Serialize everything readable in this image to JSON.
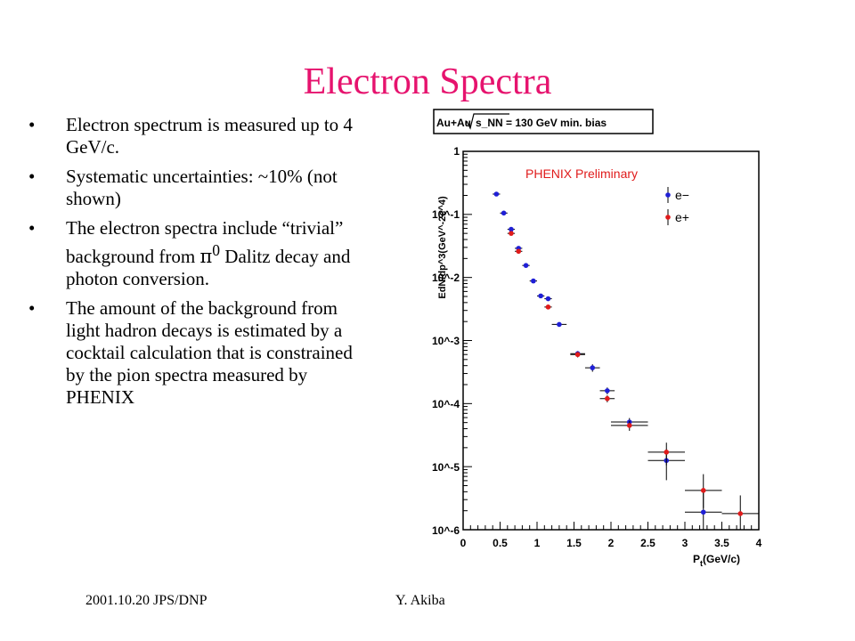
{
  "slide": {
    "title": "Electron Spectra",
    "bullets": [
      {
        "pre": "Electron spectrum is measured up to 4 GeV/c."
      },
      {
        "pre": "Systematic uncertainties: ~10% (not shown)"
      },
      {
        "pre": "The electron spectra include “trivial” background from ",
        "symbol": "π",
        "sup": "0",
        "post": " Dalitz decay and photon conversion."
      },
      {
        "pre": "The amount of the background from light hadron decays is estimated by a cocktail calculation that is constrained by the pion spectra measured by PHENIX"
      }
    ],
    "footer_left": "2001.10.20 JPS/DNP",
    "footer_right": "Y. Akiba"
  },
  "chart_data": {
    "type": "scatter",
    "header_pre": "Au+Au ",
    "header_post": "s_NN  =  130 GeV min. bias",
    "annotation": "PHENIX Preliminary",
    "xlabel_main": "P",
    "xlabel_sub": "t",
    "xlabel_rest": "(GeV/c)",
    "ylabel": "EdN/dp^3(GeV^-2c^4)",
    "y_scale": "log",
    "xlim": [
      0,
      4
    ],
    "ylim": [
      1e-06,
      1
    ],
    "xticks": [
      "0",
      "0.5",
      "1",
      "1.5",
      "2",
      "2.5",
      "3",
      "3.5",
      "4"
    ],
    "yticks": [
      "1",
      "10^-1",
      "10^-2",
      "10^-3",
      "10^-4",
      "10^-5",
      "10^-6"
    ],
    "legend_position": "top-right",
    "series": [
      {
        "name": "e−",
        "color": "#1f1fd6",
        "points": [
          {
            "x": 0.45,
            "y": 0.21,
            "xerr": 0.05,
            "ylo": 0.205,
            "yhi": 0.215
          },
          {
            "x": 0.55,
            "y": 0.105,
            "xerr": 0.05,
            "ylo": 0.102,
            "yhi": 0.108
          },
          {
            "x": 0.65,
            "y": 0.058,
            "xerr": 0.05,
            "ylo": 0.055,
            "yhi": 0.061
          },
          {
            "x": 0.75,
            "y": 0.029,
            "xerr": 0.05,
            "ylo": 0.027,
            "yhi": 0.031
          },
          {
            "x": 0.85,
            "y": 0.0155,
            "xerr": 0.05,
            "ylo": 0.0145,
            "yhi": 0.0165
          },
          {
            "x": 0.95,
            "y": 0.0088,
            "xerr": 0.05,
            "ylo": 0.0083,
            "yhi": 0.0093
          },
          {
            "x": 1.05,
            "y": 0.0051,
            "xerr": 0.05,
            "ylo": 0.0048,
            "yhi": 0.0054
          },
          {
            "x": 1.15,
            "y": 0.0046,
            "xerr": 0.05,
            "ylo": 0.0043,
            "yhi": 0.0049
          },
          {
            "x": 1.3,
            "y": 0.0018,
            "xerr": 0.1,
            "ylo": 0.0017,
            "yhi": 0.0019
          },
          {
            "x": 1.55,
            "y": 0.00062,
            "xerr": 0.1,
            "ylo": 0.00056,
            "yhi": 0.00068
          },
          {
            "x": 1.75,
            "y": 0.00037,
            "xerr": 0.1,
            "ylo": 0.00032,
            "yhi": 0.00042
          },
          {
            "x": 1.95,
            "y": 0.00016,
            "xerr": 0.1,
            "ylo": 0.00014,
            "yhi": 0.00018
          },
          {
            "x": 2.25,
            "y": 5.1e-05,
            "xerr": 0.25,
            "ylo": 4.3e-05,
            "yhi": 5.9e-05
          },
          {
            "x": 2.75,
            "y": 1.25e-05,
            "xerr": 0.25,
            "ylo": 6.1e-06,
            "yhi": 1.89e-05
          },
          {
            "x": 3.25,
            "y": 1.9e-06,
            "xerr": 0.25,
            "ylo": 1e-06,
            "yhi": 4.5e-06
          }
        ]
      },
      {
        "name": "e+",
        "color": "#e01b1b",
        "points": [
          {
            "x": 0.65,
            "y": 0.05,
            "xerr": 0.05,
            "ylo": 0.047,
            "yhi": 0.053
          },
          {
            "x": 0.75,
            "y": 0.026,
            "xerr": 0.05,
            "ylo": 0.024,
            "yhi": 0.028
          },
          {
            "x": 1.15,
            "y": 0.0034,
            "xerr": 0.05,
            "ylo": 0.0032,
            "yhi": 0.0036
          },
          {
            "x": 1.55,
            "y": 0.0006,
            "xerr": 0.1,
            "ylo": 0.00054,
            "yhi": 0.00066
          },
          {
            "x": 1.95,
            "y": 0.00012,
            "xerr": 0.1,
            "ylo": 0.000105,
            "yhi": 0.000135
          },
          {
            "x": 2.25,
            "y": 4.5e-05,
            "xerr": 0.25,
            "ylo": 3.7e-05,
            "yhi": 5.3e-05
          },
          {
            "x": 2.75,
            "y": 1.7e-05,
            "xerr": 0.25,
            "ylo": 1.05e-05,
            "yhi": 2.4e-05
          },
          {
            "x": 3.25,
            "y": 4.2e-06,
            "xerr": 0.25,
            "ylo": 2.2e-06,
            "yhi": 7.6e-06
          },
          {
            "x": 3.75,
            "y": 1.8e-06,
            "xerr": 0.25,
            "ylo": 1e-06,
            "yhi": 3.5e-06
          }
        ]
      }
    ]
  }
}
